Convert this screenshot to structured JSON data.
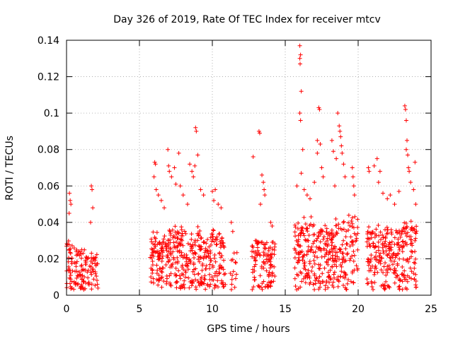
{
  "chart_data": {
    "type": "scatter",
    "title": "Day 326 of 2019, Rate Of TEC Index for receiver mtcv",
    "xlabel": "GPS time / hours",
    "ylabel": "ROTI / TECUs",
    "xlim": [
      0,
      25
    ],
    "ylim": [
      0,
      0.14
    ],
    "xticks": [
      0,
      5,
      10,
      15,
      20,
      25
    ],
    "yticks": [
      0,
      0.02,
      0.04,
      0.06,
      0.08,
      0.1,
      0.12,
      0.14
    ],
    "xtick_labels": [
      "0",
      "5",
      "10",
      "15",
      "20",
      "25"
    ],
    "ytick_labels": [
      "0",
      "0.02",
      "0.04",
      "0.06",
      "0.08",
      "0.1",
      "0.12",
      "0.14"
    ],
    "grid": true,
    "marker": "+",
    "color": "#ff0000",
    "segments": [
      {
        "x_start": 0.0,
        "x_end": 0.5,
        "density": 70,
        "y_median": 0.015,
        "y_max": 0.03
      },
      {
        "x_start": 0.5,
        "x_end": 1.5,
        "density": 70,
        "y_median": 0.013,
        "y_max": 0.028
      },
      {
        "x_start": 1.5,
        "x_end": 2.2,
        "density": 50,
        "y_median": 0.012,
        "y_max": 0.03
      },
      {
        "x_start": 5.7,
        "x_end": 7.0,
        "density": 80,
        "y_median": 0.016,
        "y_max": 0.035
      },
      {
        "x_start": 7.0,
        "x_end": 8.5,
        "density": 80,
        "y_median": 0.018,
        "y_max": 0.04
      },
      {
        "x_start": 8.5,
        "x_end": 9.6,
        "density": 80,
        "y_median": 0.017,
        "y_max": 0.04
      },
      {
        "x_start": 9.6,
        "x_end": 10.9,
        "density": 70,
        "y_median": 0.018,
        "y_max": 0.04
      },
      {
        "x_start": 11.2,
        "x_end": 11.7,
        "density": 30,
        "y_median": 0.012,
        "y_max": 0.025
      },
      {
        "x_start": 12.7,
        "x_end": 14.3,
        "density": 70,
        "y_median": 0.015,
        "y_max": 0.03
      },
      {
        "x_start": 15.6,
        "x_end": 17.0,
        "density": 80,
        "y_median": 0.02,
        "y_max": 0.045
      },
      {
        "x_start": 17.0,
        "x_end": 18.2,
        "density": 80,
        "y_median": 0.018,
        "y_max": 0.04
      },
      {
        "x_start": 18.2,
        "x_end": 19.3,
        "density": 80,
        "y_median": 0.02,
        "y_max": 0.045
      },
      {
        "x_start": 19.3,
        "x_end": 20.0,
        "density": 60,
        "y_median": 0.022,
        "y_max": 0.045
      },
      {
        "x_start": 20.6,
        "x_end": 22.0,
        "density": 80,
        "y_median": 0.018,
        "y_max": 0.04
      },
      {
        "x_start": 22.0,
        "x_end": 23.0,
        "density": 80,
        "y_median": 0.018,
        "y_max": 0.04
      },
      {
        "x_start": 23.0,
        "x_end": 24.0,
        "density": 80,
        "y_median": 0.02,
        "y_max": 0.045
      }
    ],
    "notable_points": [
      {
        "x": 0.2,
        "y": 0.056
      },
      {
        "x": 0.25,
        "y": 0.052
      },
      {
        "x": 0.3,
        "y": 0.05
      },
      {
        "x": 0.18,
        "y": 0.045
      },
      {
        "x": 1.7,
        "y": 0.06
      },
      {
        "x": 1.75,
        "y": 0.058
      },
      {
        "x": 1.8,
        "y": 0.048
      },
      {
        "x": 1.65,
        "y": 0.04
      },
      {
        "x": 6.05,
        "y": 0.073
      },
      {
        "x": 6.1,
        "y": 0.072
      },
      {
        "x": 6.0,
        "y": 0.065
      },
      {
        "x": 6.15,
        "y": 0.058
      },
      {
        "x": 6.3,
        "y": 0.055
      },
      {
        "x": 6.5,
        "y": 0.052
      },
      {
        "x": 6.7,
        "y": 0.048
      },
      {
        "x": 6.95,
        "y": 0.08
      },
      {
        "x": 7.0,
        "y": 0.071
      },
      {
        "x": 7.05,
        "y": 0.068
      },
      {
        "x": 7.2,
        "y": 0.065
      },
      {
        "x": 7.4,
        "y": 0.07
      },
      {
        "x": 7.5,
        "y": 0.061
      },
      {
        "x": 7.7,
        "y": 0.078
      },
      {
        "x": 7.8,
        "y": 0.06
      },
      {
        "x": 8.0,
        "y": 0.055
      },
      {
        "x": 8.3,
        "y": 0.05
      },
      {
        "x": 8.45,
        "y": 0.072
      },
      {
        "x": 8.6,
        "y": 0.068
      },
      {
        "x": 8.7,
        "y": 0.065
      },
      {
        "x": 8.85,
        "y": 0.092
      },
      {
        "x": 8.9,
        "y": 0.09
      },
      {
        "x": 8.8,
        "y": 0.071
      },
      {
        "x": 9.0,
        "y": 0.077
      },
      {
        "x": 9.2,
        "y": 0.058
      },
      {
        "x": 9.4,
        "y": 0.055
      },
      {
        "x": 10.0,
        "y": 0.057
      },
      {
        "x": 10.2,
        "y": 0.058
      },
      {
        "x": 10.4,
        "y": 0.05
      },
      {
        "x": 10.6,
        "y": 0.048
      },
      {
        "x": 10.1,
        "y": 0.052
      },
      {
        "x": 11.3,
        "y": 0.04
      },
      {
        "x": 11.4,
        "y": 0.035
      },
      {
        "x": 12.8,
        "y": 0.076
      },
      {
        "x": 13.2,
        "y": 0.09
      },
      {
        "x": 13.25,
        "y": 0.089
      },
      {
        "x": 13.4,
        "y": 0.066
      },
      {
        "x": 13.5,
        "y": 0.062
      },
      {
        "x": 13.55,
        "y": 0.058
      },
      {
        "x": 13.6,
        "y": 0.055
      },
      {
        "x": 13.3,
        "y": 0.05
      },
      {
        "x": 14.0,
        "y": 0.04
      },
      {
        "x": 14.1,
        "y": 0.038
      },
      {
        "x": 16.0,
        "y": 0.137
      },
      {
        "x": 16.05,
        "y": 0.132
      },
      {
        "x": 16.0,
        "y": 0.13
      },
      {
        "x": 16.02,
        "y": 0.127
      },
      {
        "x": 16.1,
        "y": 0.112
      },
      {
        "x": 16.0,
        "y": 0.1
      },
      {
        "x": 16.05,
        "y": 0.096
      },
      {
        "x": 16.2,
        "y": 0.08
      },
      {
        "x": 16.1,
        "y": 0.067
      },
      {
        "x": 15.8,
        "y": 0.06
      },
      {
        "x": 16.3,
        "y": 0.058
      },
      {
        "x": 16.5,
        "y": 0.055
      },
      {
        "x": 16.7,
        "y": 0.053
      },
      {
        "x": 17.2,
        "y": 0.085
      },
      {
        "x": 17.3,
        "y": 0.103
      },
      {
        "x": 17.35,
        "y": 0.102
      },
      {
        "x": 17.4,
        "y": 0.083
      },
      {
        "x": 17.2,
        "y": 0.078
      },
      {
        "x": 17.5,
        "y": 0.07
      },
      {
        "x": 17.6,
        "y": 0.065
      },
      {
        "x": 17.0,
        "y": 0.062
      },
      {
        "x": 18.2,
        "y": 0.085
      },
      {
        "x": 18.3,
        "y": 0.079
      },
      {
        "x": 18.5,
        "y": 0.075
      },
      {
        "x": 18.6,
        "y": 0.1
      },
      {
        "x": 18.7,
        "y": 0.093
      },
      {
        "x": 18.75,
        "y": 0.09
      },
      {
        "x": 18.8,
        "y": 0.087
      },
      {
        "x": 18.85,
        "y": 0.082
      },
      {
        "x": 18.9,
        "y": 0.078
      },
      {
        "x": 19.0,
        "y": 0.072
      },
      {
        "x": 19.1,
        "y": 0.065
      },
      {
        "x": 18.4,
        "y": 0.06
      },
      {
        "x": 19.6,
        "y": 0.07
      },
      {
        "x": 19.65,
        "y": 0.065
      },
      {
        "x": 19.7,
        "y": 0.06
      },
      {
        "x": 19.75,
        "y": 0.055
      },
      {
        "x": 20.7,
        "y": 0.07
      },
      {
        "x": 20.75,
        "y": 0.068
      },
      {
        "x": 21.1,
        "y": 0.071
      },
      {
        "x": 21.3,
        "y": 0.075
      },
      {
        "x": 21.5,
        "y": 0.068
      },
      {
        "x": 21.4,
        "y": 0.062
      },
      {
        "x": 21.7,
        "y": 0.056
      },
      {
        "x": 22.0,
        "y": 0.053
      },
      {
        "x": 22.2,
        "y": 0.055
      },
      {
        "x": 22.5,
        "y": 0.05
      },
      {
        "x": 22.8,
        "y": 0.057
      },
      {
        "x": 23.2,
        "y": 0.104
      },
      {
        "x": 23.25,
        "y": 0.102
      },
      {
        "x": 23.3,
        "y": 0.096
      },
      {
        "x": 23.35,
        "y": 0.085
      },
      {
        "x": 23.3,
        "y": 0.08
      },
      {
        "x": 23.4,
        "y": 0.077
      },
      {
        "x": 23.45,
        "y": 0.07
      },
      {
        "x": 23.5,
        "y": 0.068
      },
      {
        "x": 23.6,
        "y": 0.062
      },
      {
        "x": 23.8,
        "y": 0.058
      },
      {
        "x": 23.9,
        "y": 0.073
      },
      {
        "x": 23.95,
        "y": 0.05
      }
    ]
  }
}
